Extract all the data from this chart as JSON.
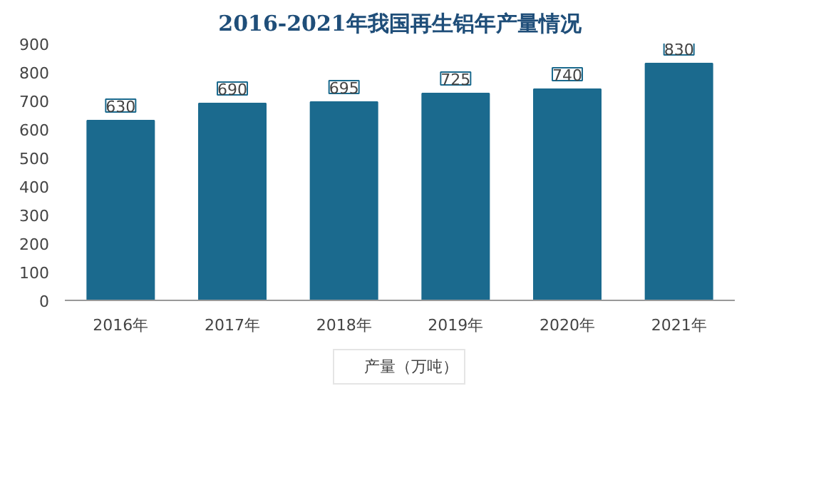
{
  "chart_data": {
    "type": "bar",
    "title": "2016-2021年我国再生铝年产量情况",
    "categories": [
      "2016年",
      "2017年",
      "2018年",
      "2019年",
      "2020年",
      "2021年"
    ],
    "series": [
      {
        "name": "产量（万吨）",
        "color": "#1b6a8e",
        "values": [
          630,
          690,
          695,
          725,
          740,
          830
        ]
      }
    ],
    "ylim": [
      0,
      900
    ],
    "yticks": [
      0,
      100,
      200,
      300,
      400,
      500,
      600,
      700,
      800,
      900
    ],
    "data_labels": true,
    "legend": "bottom",
    "grid": false
  }
}
